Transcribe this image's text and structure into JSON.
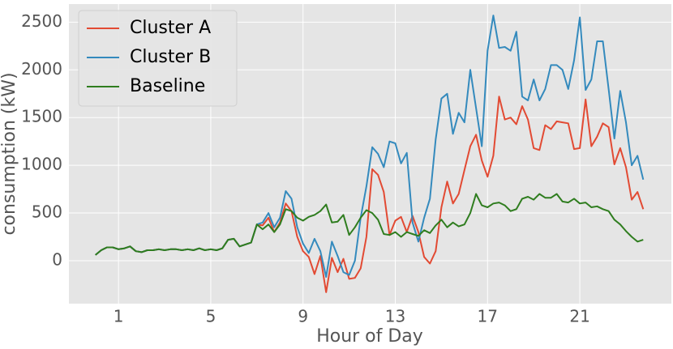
{
  "chart_data": {
    "type": "line",
    "x_label": "Hour of Day",
    "y_label": "consumption (kW)",
    "x": [
      0,
      0.25,
      0.5,
      0.75,
      1,
      1.25,
      1.5,
      1.75,
      2,
      2.25,
      2.5,
      2.75,
      3,
      3.25,
      3.5,
      3.75,
      4,
      4.25,
      4.5,
      4.75,
      5,
      5.25,
      5.5,
      5.75,
      6,
      6.25,
      6.5,
      6.75,
      7,
      7.25,
      7.5,
      7.75,
      8,
      8.25,
      8.5,
      8.75,
      9,
      9.25,
      9.5,
      9.75,
      10,
      10.25,
      10.5,
      10.75,
      11,
      11.25,
      11.5,
      11.75,
      12,
      12.25,
      12.5,
      12.75,
      13,
      13.25,
      13.5,
      13.75,
      14,
      14.25,
      14.5,
      14.75,
      15,
      15.25,
      15.5,
      15.75,
      16,
      16.25,
      16.5,
      16.75,
      17,
      17.25,
      17.5,
      17.75,
      18,
      18.25,
      18.5,
      18.75,
      19,
      19.25,
      19.5,
      19.75,
      20,
      20.25,
      20.5,
      20.75,
      21,
      21.25,
      21.5,
      21.75,
      22,
      22.25,
      22.5,
      22.75,
      23,
      23.25,
      23.5,
      23.75
    ],
    "series": [
      {
        "name": "Cluster A",
        "color": "#e24a33",
        "values": [
          60,
          110,
          140,
          140,
          120,
          130,
          150,
          100,
          90,
          110,
          110,
          120,
          110,
          120,
          120,
          110,
          120,
          110,
          130,
          110,
          120,
          110,
          130,
          220,
          230,
          150,
          170,
          190,
          380,
          370,
          450,
          300,
          400,
          600,
          520,
          250,
          100,
          40,
          -140,
          50,
          -330,
          30,
          -120,
          20,
          -190,
          -180,
          -80,
          250,
          960,
          900,
          720,
          270,
          420,
          460,
          300,
          470,
          300,
          40,
          -30,
          100,
          560,
          830,
          600,
          700,
          950,
          1200,
          1320,
          1050,
          880,
          1100,
          1720,
          1480,
          1500,
          1430,
          1620,
          1480,
          1180,
          1160,
          1420,
          1380,
          1460,
          1450,
          1440,
          1170,
          1180,
          1690,
          1200,
          1300,
          1440,
          1400,
          1010,
          1180,
          980,
          640,
          720,
          540
        ]
      },
      {
        "name": "Cluster B",
        "color": "#348abd",
        "values": [
          60,
          110,
          140,
          140,
          120,
          130,
          150,
          100,
          90,
          110,
          110,
          120,
          110,
          120,
          120,
          110,
          120,
          110,
          130,
          110,
          120,
          110,
          130,
          220,
          230,
          150,
          170,
          190,
          380,
          400,
          500,
          350,
          450,
          730,
          650,
          350,
          180,
          80,
          230,
          100,
          -170,
          200,
          50,
          -120,
          -150,
          0,
          450,
          780,
          1190,
          1120,
          980,
          1250,
          1230,
          1020,
          1130,
          400,
          200,
          450,
          650,
          1270,
          1700,
          1750,
          1330,
          1550,
          1450,
          2000,
          1600,
          1200,
          2200,
          2570,
          2230,
          2240,
          2200,
          2400,
          1720,
          1680,
          1900,
          1680,
          1800,
          2050,
          2050,
          2000,
          1800,
          2100,
          2550,
          1790,
          1900,
          2300,
          2300,
          1800,
          1280,
          1780,
          1450,
          1000,
          1100,
          850
        ]
      },
      {
        "name": "Baseline",
        "color": "#2f7d1f",
        "values": [
          60,
          110,
          140,
          140,
          120,
          130,
          150,
          100,
          90,
          110,
          110,
          120,
          110,
          120,
          120,
          110,
          120,
          110,
          130,
          110,
          120,
          110,
          130,
          220,
          230,
          150,
          170,
          190,
          380,
          330,
          380,
          300,
          380,
          540,
          520,
          450,
          420,
          460,
          480,
          520,
          590,
          400,
          410,
          480,
          270,
          350,
          450,
          530,
          500,
          430,
          280,
          270,
          300,
          250,
          300,
          280,
          260,
          320,
          290,
          370,
          430,
          350,
          400,
          360,
          380,
          500,
          700,
          580,
          560,
          600,
          610,
          580,
          520,
          540,
          650,
          670,
          640,
          700,
          660,
          660,
          700,
          620,
          610,
          650,
          600,
          610,
          560,
          570,
          540,
          520,
          430,
          380,
          310,
          250,
          200,
          220
        ]
      }
    ],
    "xlim": [
      -1.15,
      24.97
    ],
    "ylim": [
      -450,
      2690
    ],
    "xticks": [
      1,
      5,
      9,
      13,
      17,
      21
    ],
    "yticks": [
      0,
      500,
      1000,
      1500,
      2000,
      2500
    ],
    "grid": true,
    "legend": "upper-left"
  }
}
